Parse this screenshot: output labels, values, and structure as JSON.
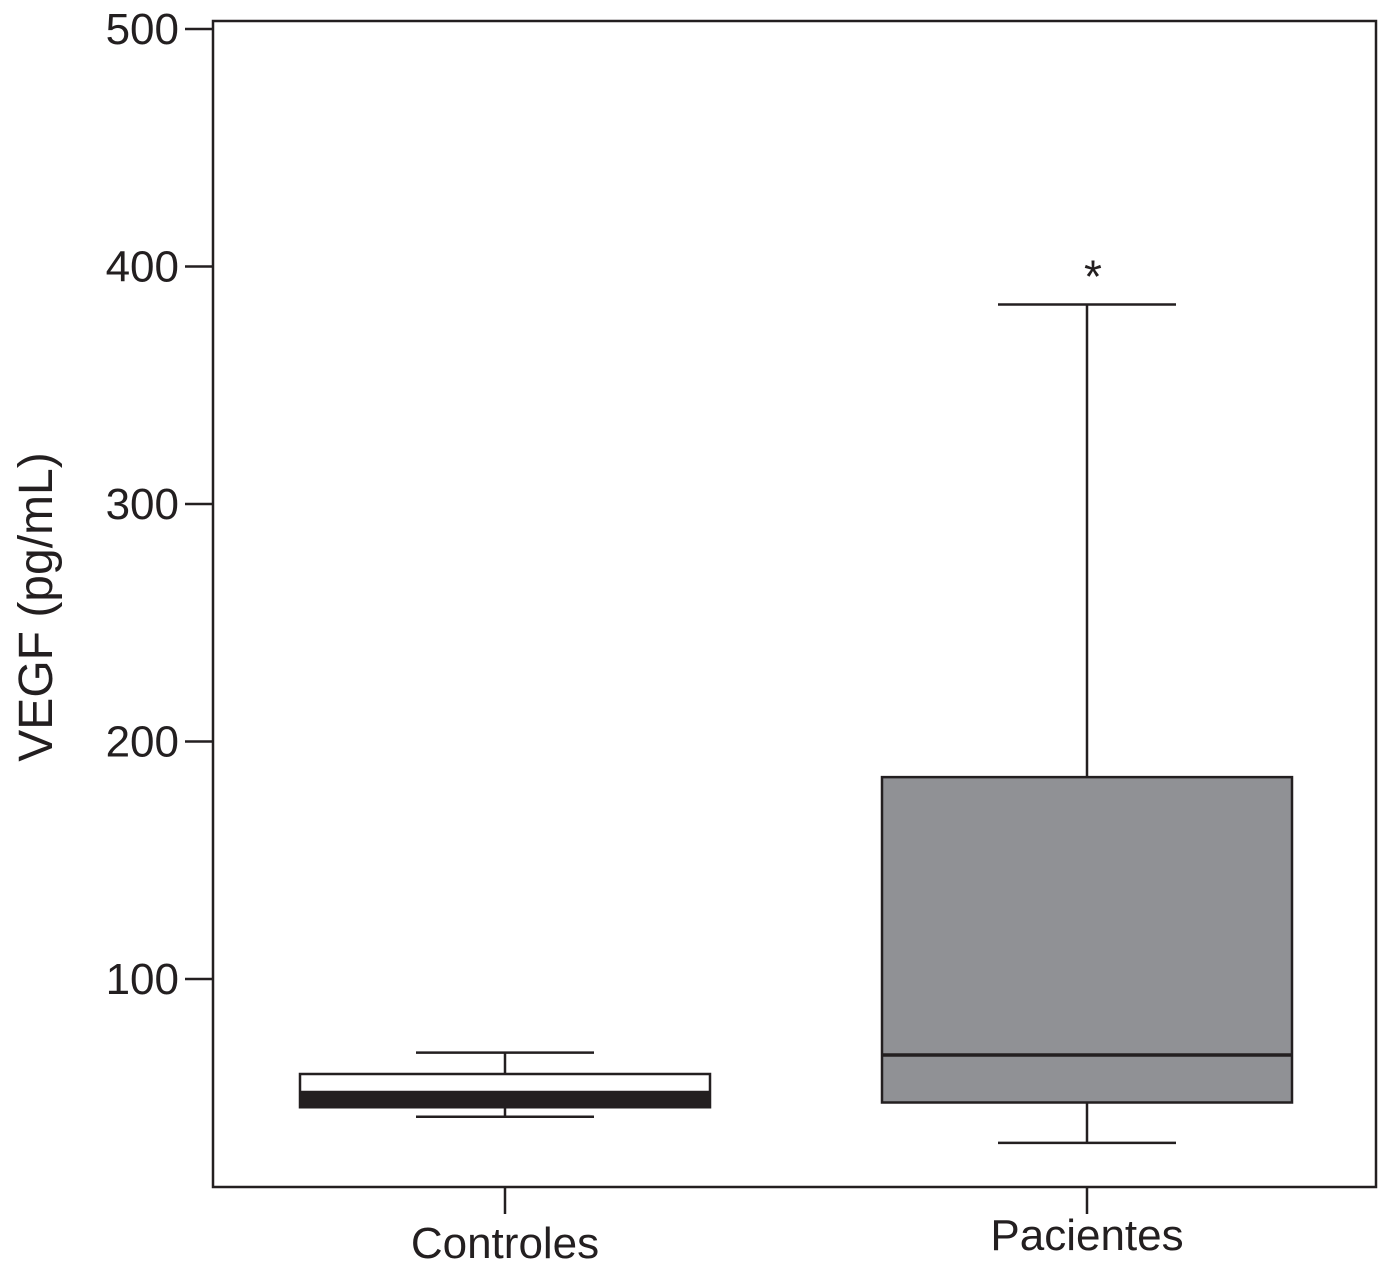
{
  "chart_data": {
    "type": "box",
    "ylabel": "VEGF (pg/mL)",
    "xlabel": "",
    "ylim": [
      0,
      500
    ],
    "yticks": [
      100,
      200,
      300,
      400,
      500
    ],
    "ytick_labels": [
      "100",
      "200",
      "300",
      "400",
      "500"
    ],
    "grid": false,
    "categories": [
      "Controles",
      "Pacientes"
    ],
    "boxes": [
      {
        "category": "Controles",
        "whisker_low": 42,
        "q1": 46,
        "median": 50,
        "q3": 60,
        "whisker_high": 69,
        "fill": "#ffffff",
        "median_band": true,
        "annotation": ""
      },
      {
        "category": "Pacientes",
        "whisker_low": 31,
        "q1": 48,
        "median": 68,
        "q3": 185,
        "whisker_high": 384,
        "fill": "#909195",
        "median_band": false,
        "annotation": "*"
      }
    ],
    "colors": {
      "axis": "#231f20",
      "controles_fill": "#ffffff",
      "pacientes_fill": "#909195"
    }
  }
}
